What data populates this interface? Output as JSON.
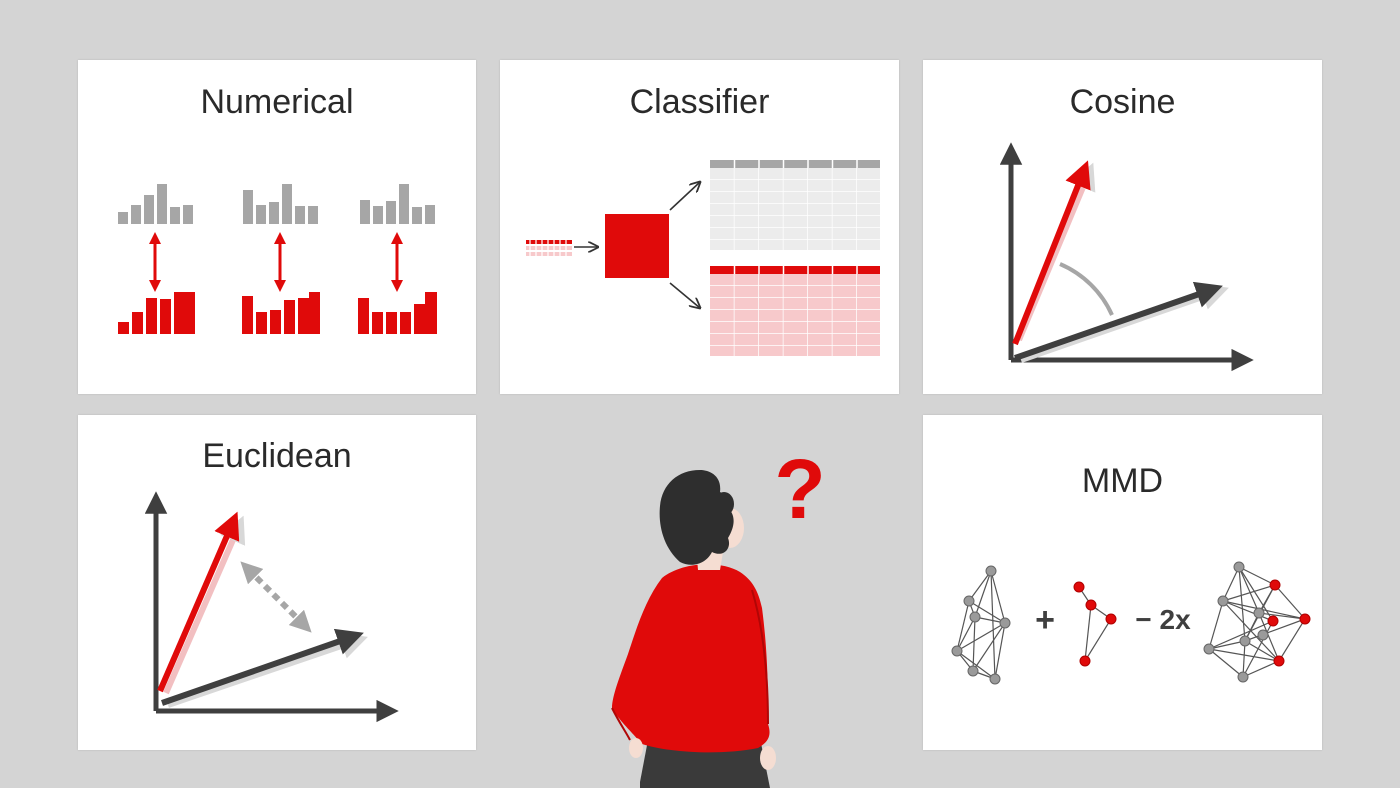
{
  "cards": {
    "numerical": {
      "title": "Numerical"
    },
    "classifier": {
      "title": "Classifier"
    },
    "cosine": {
      "title": "Cosine"
    },
    "euclidean": {
      "title": "Euclidean"
    },
    "mmd": {
      "title": "MMD",
      "formula": {
        "plus": "+",
        "minus_factor": "− 2x"
      }
    }
  },
  "person": {
    "question_mark": "?"
  },
  "colors": {
    "background": "#d4d4d4",
    "card": "#ffffff",
    "accent_red": "#e00a0a",
    "light_red": "#f7c9cb",
    "gray": "#a6a6a6",
    "dark": "#3f3f3f"
  }
}
